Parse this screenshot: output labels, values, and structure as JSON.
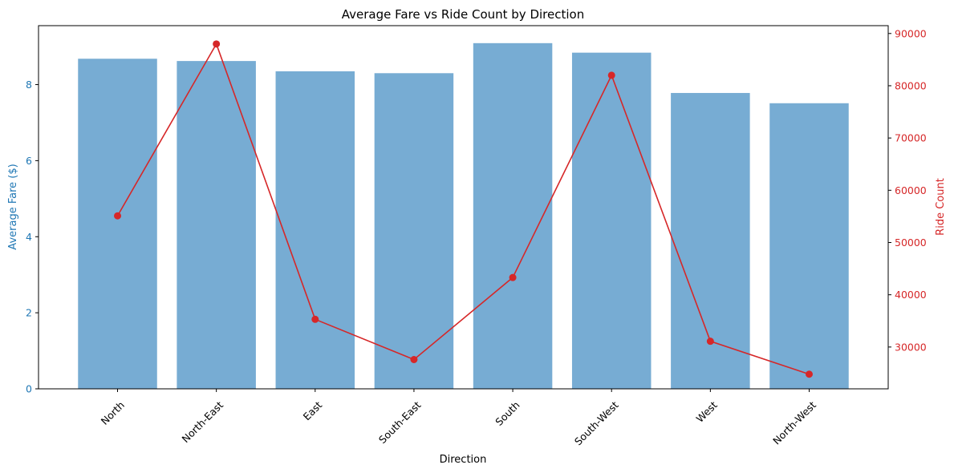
{
  "chart_data": {
    "type": "bar",
    "title": "Average Fare vs Ride Count by Direction",
    "xlabel": "Direction",
    "categories": [
      "North",
      "North-East",
      "East",
      "South-East",
      "South",
      "South-West",
      "West",
      "North-West"
    ],
    "series": [
      {
        "axis": "left",
        "type": "bar",
        "values": [
          8.68,
          8.62,
          8.35,
          8.3,
          9.09,
          8.84,
          7.78,
          7.51
        ],
        "color": "#77acd3"
      },
      {
        "axis": "right",
        "type": "line",
        "values": [
          55100,
          88000,
          35300,
          27600,
          43300,
          82000,
          31100,
          24800
        ],
        "color": "#d62728",
        "marker": "circle"
      }
    ],
    "ylabel": "Average Fare ($)",
    "ylim": [
      0,
      9.55
    ],
    "yticks": [
      0,
      2,
      4,
      6,
      8
    ],
    "ylabel_right": "Ride Count",
    "ylim_right": [
      22000,
      91500
    ],
    "yticks_right": [
      30000,
      40000,
      50000,
      60000,
      70000,
      80000,
      90000
    ],
    "left_axis_color": "#1f77b4",
    "right_axis_color": "#d62728",
    "grid": false,
    "legend": false
  }
}
